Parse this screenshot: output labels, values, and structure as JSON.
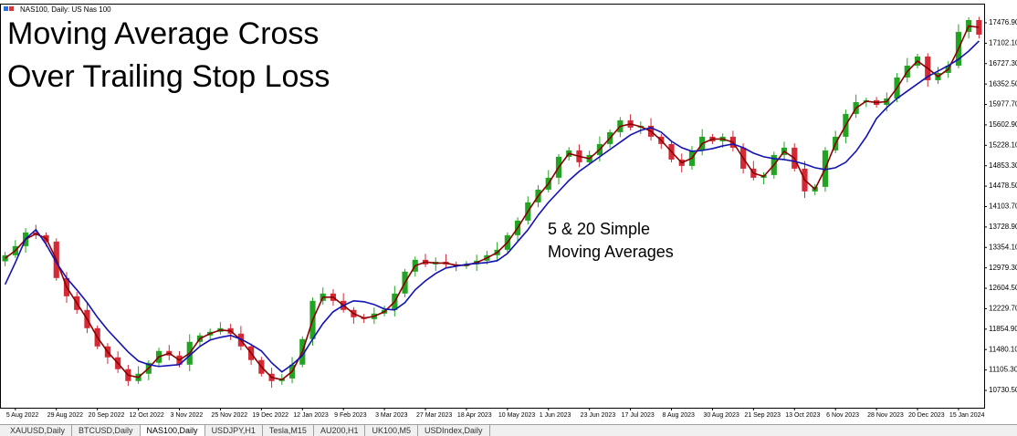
{
  "chart_data": {
    "type": "candlestick",
    "symbol": "NAS100, Daily: US Nas 100",
    "title": [
      "Moving Average Cross",
      "Over Trailing Stop Loss"
    ],
    "annotations": [
      "5 & 20 Simple",
      "Moving Averages"
    ],
    "up_color": "#22a322",
    "down_color": "#d42a35",
    "categories": [
      null,
      "5 Aug 2022",
      null,
      null,
      null,
      "29 Aug 2022",
      null,
      null,
      null,
      "20 Sep 2022",
      null,
      null,
      null,
      "12 Oct 2022",
      null,
      null,
      null,
      "3 Nov 2022",
      null,
      null,
      null,
      "25 Nov 2022",
      null,
      null,
      null,
      "19 Dec 2022",
      null,
      null,
      null,
      "12 Jan 2023",
      null,
      null,
      null,
      "9 Feb 2023",
      null,
      null,
      null,
      "3 Mar 2023",
      null,
      null,
      null,
      "27 Mar 2023",
      null,
      null,
      null,
      "18 Apr 2023",
      null,
      null,
      null,
      "10 May 2023",
      null,
      null,
      null,
      "1 Jun 2023",
      null,
      null,
      null,
      "23 Jun 2023",
      null,
      null,
      null,
      "17 Jul 2023",
      null,
      null,
      null,
      "8 Aug 2023",
      null,
      null,
      null,
      "30 Aug 2023",
      null,
      null,
      null,
      "21 Sep 2023",
      null,
      null,
      null,
      "13 Oct 2023",
      null,
      null,
      null,
      "6 Nov 2023",
      null,
      null,
      null,
      "28 Nov 2023",
      null,
      null,
      null,
      "20 Dec 2023",
      null,
      null,
      null,
      "15 Jan 2024",
      null,
      null
    ],
    "open": [
      13100,
      13211,
      13378,
      13629,
      13579,
      13462,
      12793,
      12458,
      12207,
      11872,
      11538,
      11337,
      11120,
      10902,
      11036,
      11237,
      11454,
      11371,
      11203,
      11621,
      11739,
      11806,
      11872,
      11772,
      11538,
      11287,
      11036,
      10902,
      10950,
      11203,
      11672,
      12374,
      12508,
      12374,
      12207,
      12073,
      12040,
      12140,
      12207,
      12508,
      12910,
      13127,
      13044,
      13090,
      13044,
      13010,
      13044,
      13110,
      13211,
      13311,
      13579,
      13847,
      14181,
      14415,
      14633,
      15018,
      15135,
      14917,
      15051,
      15252,
      15469,
      15687,
      15553,
      15587,
      15386,
      15252,
      14967,
      14850,
      15135,
      15386,
      15302,
      15386,
      15185,
      14800,
      14633,
      14683,
      15051,
      15185,
      14800,
      14382,
      14466,
      15135,
      15386,
      15804,
      16021,
      16055,
      15971,
      16088,
      16473,
      16691,
      16858,
      16423,
      16557,
      16691,
      17310,
      17527
    ],
    "high": [
      13271,
      13488,
      13709,
      13769,
      13629,
      13522,
      12903,
      12538,
      12347,
      11922,
      11598,
      11447,
      11200,
      11176,
      11287,
      11514,
      11564,
      11451,
      11761,
      11789,
      11866,
      11982,
      11952,
      11912,
      11588,
      11347,
      11146,
      11030,
      11343,
      11722,
      12434,
      12618,
      12588,
      12514,
      12257,
      12133,
      12250,
      12287,
      12648,
      12960,
      13187,
      13237,
      13170,
      13230,
      13094,
      13104,
      13220,
      13291,
      13451,
      13629,
      13907,
      14291,
      14495,
      14773,
      15068,
      15195,
      15245,
      15131,
      15392,
      15519,
      15747,
      15797,
      15667,
      15727,
      15436,
      15312,
      15077,
      15215,
      15526,
      15436,
      15446,
      15496,
      15265,
      14940,
      14733,
      15111,
      15295,
      15265,
      14940,
      14516,
      15195,
      15496,
      15884,
      16161,
      16105,
      16115,
      16198,
      16553,
      16831,
      16908,
      16918,
      16667,
      16771,
      17450,
      17577,
      17587
    ],
    "low": [
      13010,
      13161,
      13258,
      13509,
      13372,
      12743,
      12338,
      12137,
      11782,
      11488,
      11217,
      11050,
      10812,
      10852,
      10916,
      11167,
      11281,
      11153,
      11083,
      11551,
      11649,
      11756,
      11652,
      11468,
      11197,
      10986,
      10782,
      10832,
      10860,
      11153,
      11552,
      12304,
      12284,
      12157,
      11953,
      11970,
      11950,
      12090,
      12087,
      12438,
      12820,
      12994,
      12924,
      12974,
      12920,
      12960,
      12924,
      13040,
      13121,
      13261,
      13459,
      13777,
      14091,
      14365,
      14513,
      14948,
      14827,
      14867,
      14931,
      15182,
      15379,
      15503,
      15433,
      15316,
      15162,
      14917,
      14730,
      14780,
      15045,
      15252,
      15182,
      15115,
      14710,
      14583,
      14513,
      14613,
      14961,
      14750,
      14262,
      14312,
      14376,
      15085,
      15266,
      15734,
      15931,
      15921,
      15851,
      16018,
      16383,
      16641,
      16303,
      16353,
      16467,
      16641,
      17190,
      17190
    ],
    "close": [
      13211,
      13378,
      13629,
      13579,
      13462,
      12793,
      12458,
      12207,
      11872,
      11538,
      11337,
      11120,
      10902,
      11036,
      11237,
      11454,
      11371,
      11203,
      11621,
      11739,
      11806,
      11872,
      11772,
      11538,
      11287,
      11036,
      10902,
      10950,
      11203,
      11672,
      12374,
      12508,
      12374,
      12207,
      12073,
      12040,
      12140,
      12207,
      12508,
      12910,
      13127,
      13044,
      13090,
      13044,
      13010,
      13044,
      13110,
      13211,
      13311,
      13579,
      13847,
      14181,
      14415,
      14633,
      15018,
      15135,
      14917,
      15051,
      15252,
      15469,
      15687,
      15553,
      15587,
      15386,
      15252,
      14967,
      14850,
      15135,
      15386,
      15302,
      15386,
      15185,
      14800,
      14633,
      14683,
      15051,
      15185,
      14800,
      14382,
      14466,
      15135,
      15386,
      15804,
      16021,
      16055,
      15971,
      16088,
      16473,
      16691,
      16858,
      16423,
      16557,
      16691,
      17310,
      17527,
      17260
    ],
    "series": [
      {
        "color": "#8b0000",
        "values": [
          13156,
          13295,
          13504,
          13604,
          13521,
          13128,
          12626,
          12333,
          12040,
          11705,
          11438,
          11229,
          11011,
          10969,
          11137,
          11346,
          11413,
          11287,
          11412,
          11680,
          11773,
          11839,
          11822,
          11655,
          11413,
          11162,
          10969,
          10926,
          11077,
          11438,
          12023,
          12441,
          12441,
          12291,
          12140,
          12057,
          12090,
          12174,
          12358,
          12709,
          13019,
          13086,
          13067,
          13067,
          13027,
          13027,
          13077,
          13161,
          13261,
          13445,
          13713,
          14014,
          14298,
          14524,
          14826,
          15077,
          15026,
          14984,
          15152,
          15361,
          15578,
          15620,
          15570,
          15487,
          15319,
          15110,
          14909,
          14993,
          15261,
          15344,
          15344,
          15286,
          14993,
          14717,
          14658,
          14867,
          15118,
          14993,
          14591,
          14424,
          14801,
          15261,
          15595,
          15913,
          16038,
          16013,
          16030,
          16281,
          16582,
          16775,
          16641,
          16490,
          16624,
          17001,
          17419,
          17394
        ]
      },
      {
        "color": "#1212b4",
        "values": [
          12675,
          13077,
          13512,
          13679,
          13412,
          13077,
          12793,
          12575,
          12341,
          12073,
          11839,
          11638,
          11437,
          11270,
          11203,
          11170,
          11187,
          11203,
          11371,
          11538,
          11655,
          11705,
          11739,
          11672,
          11571,
          11454,
          11237,
          11069,
          11203,
          11371,
          11672,
          11956,
          12174,
          12291,
          12374,
          12358,
          12307,
          12224,
          12207,
          12341,
          12575,
          12742,
          12876,
          12977,
          13010,
          13044,
          13060,
          13077,
          13110,
          13244,
          13462,
          13679,
          13947,
          14181,
          14382,
          14583,
          14750,
          14884,
          15018,
          15152,
          15285,
          15419,
          15503,
          15553,
          15469,
          15302,
          15185,
          15118,
          15135,
          15168,
          15218,
          15252,
          15185,
          15085,
          15018,
          14984,
          14967,
          14934,
          14884,
          14817,
          14783,
          14817,
          14917,
          15118,
          15386,
          15720,
          15921,
          16088,
          16222,
          16356,
          16490,
          16590,
          16691,
          16808,
          16958,
          17142
        ]
      }
    ],
    "ylim": [
      10412.4,
      17811.5
    ],
    "yticks": [
      {
        "value": 17476.9,
        "label": "17476.90"
      },
      {
        "value": 17102.1,
        "label": "17102.10"
      },
      {
        "value": 16727.3,
        "label": "16727.30"
      },
      {
        "value": 16352.5,
        "label": "16352.50"
      },
      {
        "value": 15977.7,
        "label": "15977.70"
      },
      {
        "value": 15602.9,
        "label": "15602.90"
      },
      {
        "value": 15228.1,
        "label": "15228.10"
      },
      {
        "value": 14853.3,
        "label": "14853.30"
      },
      {
        "value": 14478.5,
        "label": "14478.50"
      },
      {
        "value": 14103.7,
        "label": "14103.70"
      },
      {
        "value": 13728.9,
        "label": "13728.90"
      },
      {
        "value": 13354.1,
        "label": "13354.10"
      },
      {
        "value": 12979.3,
        "label": "12979.30"
      },
      {
        "value": 12604.5,
        "label": "12604.50"
      },
      {
        "value": 12229.7,
        "label": "12229.70"
      },
      {
        "value": 11854.9,
        "label": "11854.90"
      },
      {
        "value": 11480.1,
        "label": "11480.10"
      },
      {
        "value": 11105.3,
        "label": "11105.30"
      },
      {
        "value": 10730.5,
        "label": "10730.50"
      }
    ],
    "grid": false
  },
  "tabs": [
    "XAUUSD,Daily",
    "BTCUSD,Daily",
    "NAS100,Daily",
    "USDJPY,H1",
    "Tesla,M15",
    "AU200,H1",
    "UK100,M5",
    "USDIndex,Daily"
  ],
  "active_tab": 2
}
